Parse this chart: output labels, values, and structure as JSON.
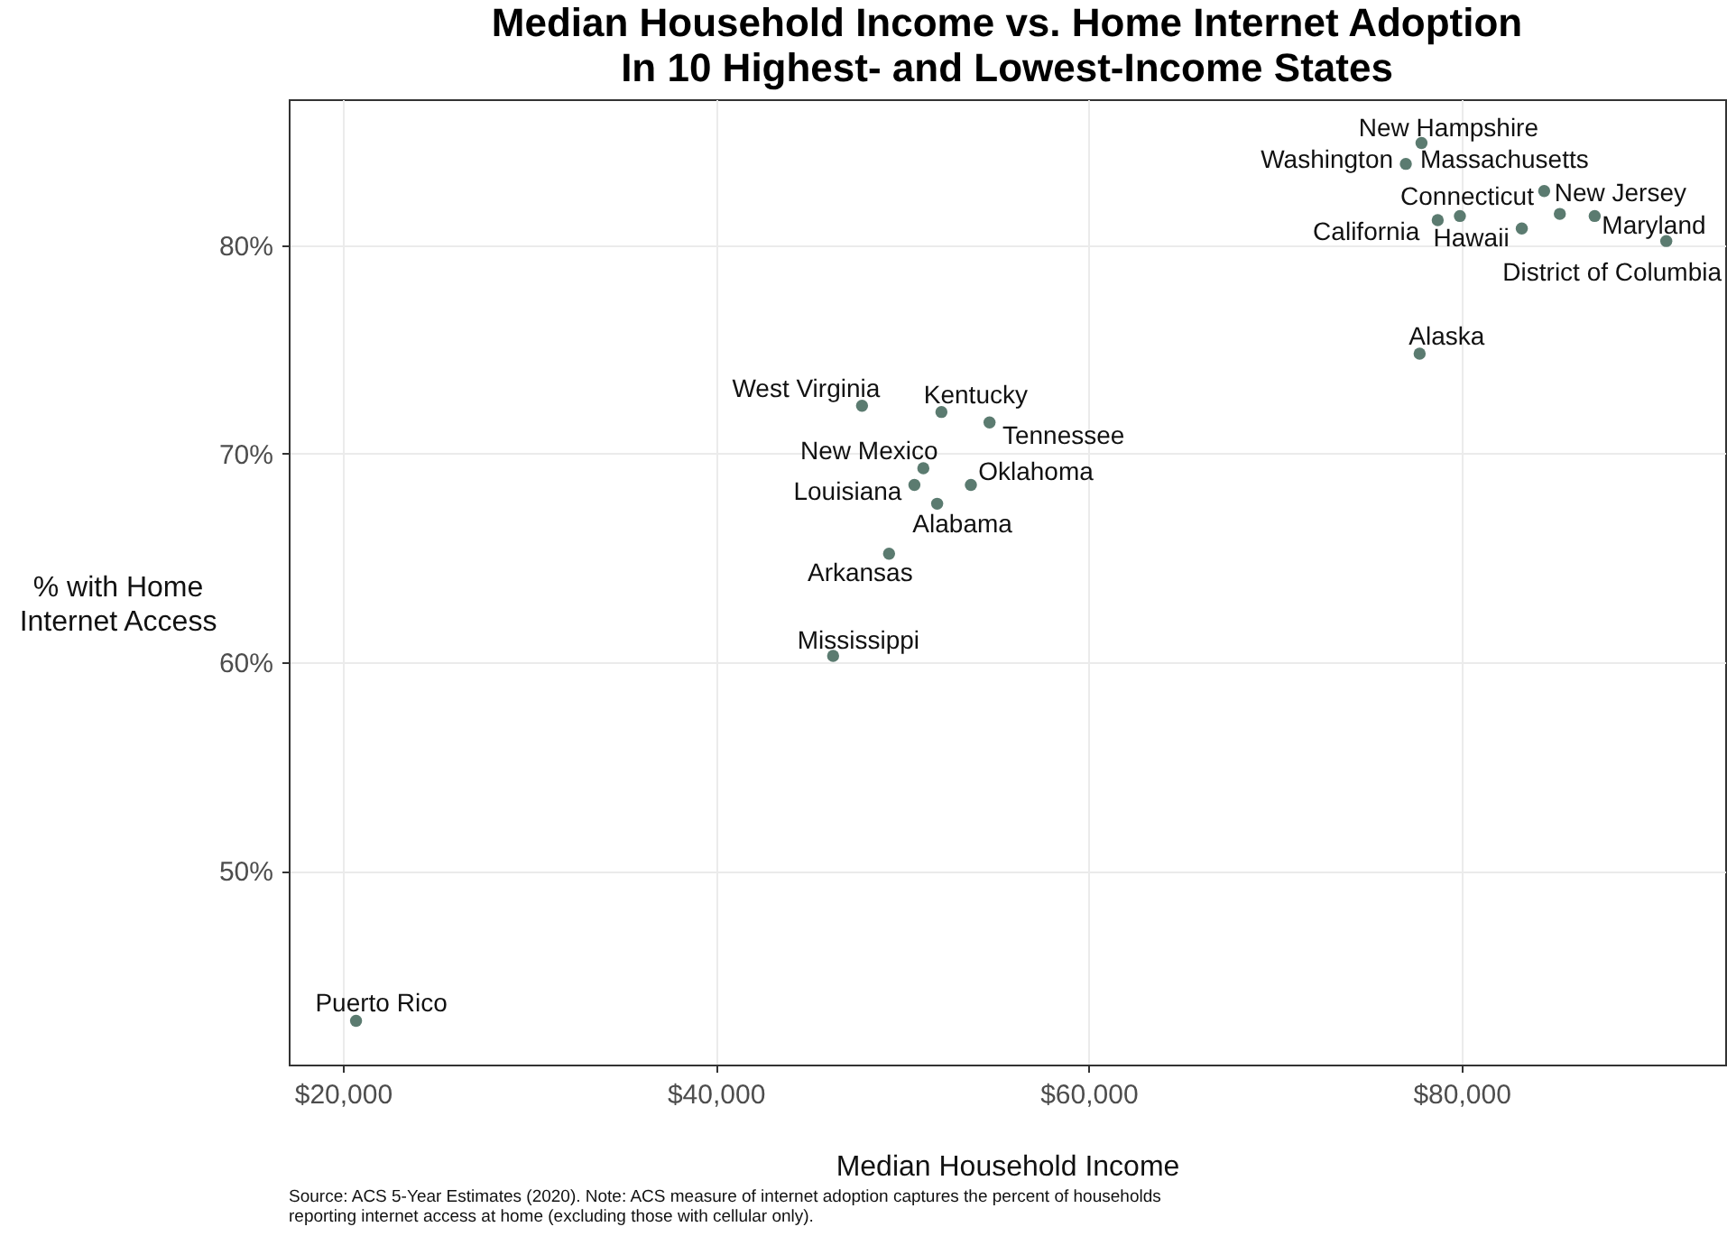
{
  "chart_data": {
    "type": "scatter",
    "title": "Median Household Income vs. Home Internet Adoption\nIn 10 Highest- and Lowest-Income States",
    "xlabel": "Median Household Income",
    "ylabel": "% with Home\nInternet Access",
    "x": [
      77860,
      77020,
      84440,
      79920,
      78730,
      83240,
      85280,
      87150,
      90990,
      77760,
      47850,
      52110,
      54690,
      51140,
      50660,
      53690,
      51880,
      49300,
      46300,
      20710
    ],
    "series": [
      {
        "color": "#5b7b70",
        "values": [
          84.9,
          83.9,
          82.6,
          81.4,
          81.2,
          80.8,
          81.5,
          81.4,
          80.2,
          74.8,
          72.3,
          72.0,
          71.5,
          69.3,
          68.5,
          68.5,
          67.6,
          65.2,
          60.3,
          42.8
        ],
        "value_labels": [
          "New Hampshire",
          "Washington",
          "Massachusetts",
          "Connecticut",
          "California",
          "Hawaii",
          "New Jersey",
          "Maryland",
          "District of Columbia",
          "Alaska",
          "West Virginia",
          "Kentucky",
          "Tennessee",
          "New Mexico",
          "Louisiana",
          "Oklahoma",
          "Alabama",
          "Arkansas",
          "Mississippi",
          "Puerto Rico"
        ]
      }
    ],
    "xlim": [
      17100,
      94150
    ],
    "ylim": [
      40.7,
      87.0
    ],
    "xticks": [
      {
        "value": 20000,
        "label": "$20,000"
      },
      {
        "value": 40000,
        "label": "$40,000"
      },
      {
        "value": 60000,
        "label": "$60,000"
      },
      {
        "value": 80000,
        "label": "$80,000"
      }
    ],
    "yticks": [
      {
        "value": 50,
        "label": "50%"
      },
      {
        "value": 60,
        "label": "60%"
      },
      {
        "value": 70,
        "label": "70%"
      },
      {
        "value": 80,
        "label": "80%"
      }
    ],
    "grid": true,
    "marker": "circle",
    "annotations": [
      "Source: ACS 5-Year Estimates (2020).  Note: ACS measure of internet adoption captures the percent of households\nreporting internet access at home (excluding those with cellular only)."
    ]
  }
}
